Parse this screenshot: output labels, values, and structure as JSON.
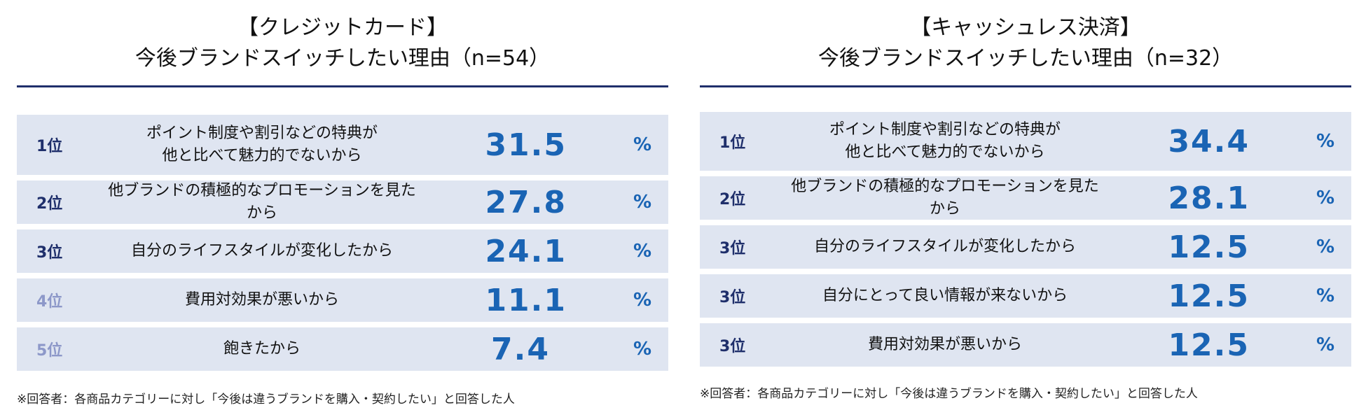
{
  "chart_data": [
    {
      "type": "table",
      "title": "【クレジットカード】",
      "subtitle": "今後ブランドスイッチしたい理由（n=54）",
      "unit": "%",
      "rows": [
        {
          "rank": "1位",
          "reason_line1": "ポイント制度や割引などの特典が",
          "reason_line2": "他と比べて魅力的でないから",
          "value": "31.5"
        },
        {
          "rank": "2位",
          "reason_line1": "他ブランドの積極的なプロモーションを見たから",
          "value": "27.8"
        },
        {
          "rank": "3位",
          "reason_line1": "自分のライフスタイルが変化したから",
          "value": "24.1"
        },
        {
          "rank": "4位",
          "reason_line1": "費用対効果が悪いから",
          "value": "11.1"
        },
        {
          "rank": "5位",
          "reason_line1": "飽きたから",
          "value": "7.4"
        }
      ],
      "note": "※回答者：各商品カテゴリーに対し「今後は違うブランドを購入・契約したい」と回答した人"
    },
    {
      "type": "table",
      "title": "【キャッシュレス決済】",
      "subtitle": "今後ブランドスイッチしたい理由（n=32）",
      "unit": "%",
      "rows": [
        {
          "rank": "1位",
          "reason_line1": "ポイント制度や割引などの特典が",
          "reason_line2": "他と比べて魅力的でないから",
          "value": "34.4"
        },
        {
          "rank": "2位",
          "reason_line1": "他ブランドの積極的なプロモーションを見たから",
          "value": "28.1"
        },
        {
          "rank": "3位",
          "reason_line1": "自分のライフスタイルが変化したから",
          "value": "12.5"
        },
        {
          "rank": "3位",
          "reason_line1": "自分にとって良い情報が来ないから",
          "value": "12.5"
        },
        {
          "rank": "3位",
          "reason_line1": "費用対効果が悪いから",
          "value": "12.5"
        }
      ],
      "note": "※回答者：各商品カテゴリーに対し「今後は違うブランドを購入・契約したい」と回答した人"
    }
  ],
  "colors": {
    "rule": "#1f2f6b",
    "row_bg": "#dfe5f1",
    "rank_dark": "#1f2f6b",
    "rank_light": "#8d98c9",
    "value": "#1a64b4"
  }
}
